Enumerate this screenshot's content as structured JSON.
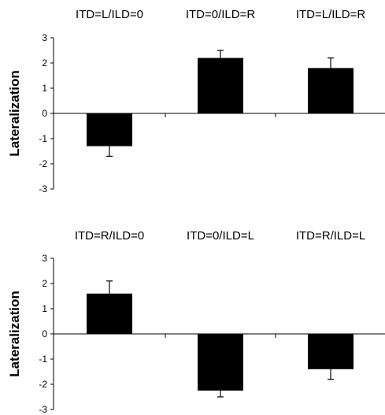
{
  "chart_data": [
    {
      "type": "bar",
      "categories": [
        "ITD=L/ILD=0",
        "ITD=0/ILD=R",
        "ITD=L/ILD=R"
      ],
      "values": [
        -1.3,
        2.2,
        1.8
      ],
      "error_bars": [
        0.4,
        0.3,
        0.4
      ],
      "ylabel": "Lateralization",
      "ylim": [
        -3,
        3
      ],
      "yticks": [
        "3",
        "2",
        "1",
        "0",
        "-1",
        "-2",
        "-3"
      ],
      "bar_color": "#000000",
      "grid": false
    },
    {
      "type": "bar",
      "categories": [
        "ITD=R/ILD=0",
        "ITD=0/ILD=L",
        "ITD=R/ILD=L"
      ],
      "values": [
        1.6,
        -2.25,
        -1.4
      ],
      "error_bars": [
        0.5,
        0.25,
        0.4
      ],
      "ylabel": "Lateralization",
      "ylim": [
        -3,
        3
      ],
      "yticks": [
        "3",
        "2",
        "1",
        "0",
        "-1",
        "-2",
        "-3"
      ],
      "bar_color": "#000000",
      "grid": false
    }
  ]
}
